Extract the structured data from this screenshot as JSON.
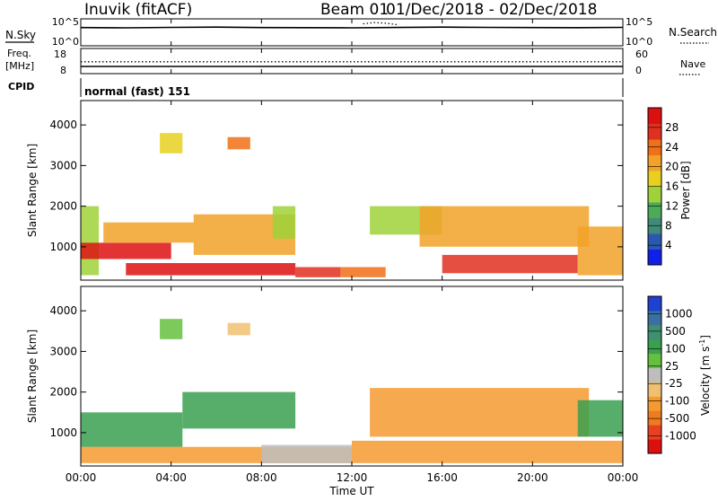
{
  "header": {
    "station": "Inuvik (fitACF)",
    "beam": "Beam 01",
    "date_range": "01/Dec/2018 - 02/Dec/2018"
  },
  "panels": {
    "nsky": {
      "label": "N.Sky",
      "ticks": [
        "10^5",
        "10^0"
      ]
    },
    "nsearch": {
      "label": "N.Search",
      "ticks": [
        "10^5",
        "10^0"
      ]
    },
    "freq": {
      "label": "Freq.",
      "unit": "[MHz]",
      "ticks": [
        "18",
        "8"
      ]
    },
    "nave": {
      "label": "Nave",
      "ticks": [
        "60",
        "0"
      ]
    },
    "cpid": {
      "label": "CPID",
      "mode": "normal (fast) 151"
    }
  },
  "axes": {
    "x_label": "Time UT",
    "x_ticks": [
      "00:00",
      "04:00",
      "08:00",
      "12:00",
      "16:00",
      "20:00",
      "00:00"
    ],
    "y_label": "Slant Range [km]",
    "y_ticks": [
      "1000",
      "2000",
      "3000",
      "4000"
    ]
  },
  "colorbars": {
    "power": {
      "label": "Power [dB]",
      "ticks": [
        "4",
        "8",
        "12",
        "16",
        "20",
        "24",
        "28"
      ],
      "colors": [
        "#1020e8",
        "#2a58b0",
        "#3f8a78",
        "#4caa58",
        "#9fd23a",
        "#e8d020",
        "#f2a228",
        "#f07018",
        "#e03020",
        "#dd1010"
      ]
    },
    "velocity": {
      "label": "Velocity [m s",
      "label_sup": "-1",
      "label_end": "]",
      "ticks": [
        "1000",
        "500",
        "100",
        "25",
        "-25",
        "-100",
        "-500",
        "-1000"
      ],
      "colors": [
        "#2040d0",
        "#3a70a0",
        "#3f8f70",
        "#3aa050",
        "#66c040",
        "#bebebe",
        "#f0c070",
        "#f49a30",
        "#f07a20",
        "#e84020",
        "#dd1010"
      ]
    }
  },
  "chart_data": [
    {
      "type": "line",
      "title": "N.Sky / N.Search",
      "x_range_hours": [
        0,
        24
      ],
      "yscale": "log",
      "ylim": [
        1,
        100000
      ],
      "series": [
        {
          "name": "N.Sky",
          "style": "solid",
          "x": [
            0,
            2,
            4,
            6,
            8,
            10,
            12,
            14,
            16,
            18,
            20,
            22,
            24
          ],
          "values": [
            4000,
            3500,
            4500,
            5000,
            4000,
            3800,
            3500,
            4200,
            5000,
            4500,
            4000,
            3800,
            4500
          ]
        },
        {
          "name": "N.Search",
          "style": "dotted",
          "x": [
            12.5,
            13,
            13.5,
            14
          ],
          "values": [
            30000,
            60000,
            40000,
            20000
          ]
        }
      ]
    },
    {
      "type": "line",
      "title": "Freq. / Nave",
      "x_range_hours": [
        0,
        24
      ],
      "series": [
        {
          "name": "Freq.",
          "style": "solid",
          "ylim": [
            8,
            18
          ],
          "x": [
            0,
            24
          ],
          "values": [
            10.5,
            10.5
          ]
        },
        {
          "name": "Nave",
          "style": "dotted",
          "ylim": [
            0,
            60
          ],
          "x": [
            0,
            24
          ],
          "values": [
            28,
            28
          ]
        }
      ]
    },
    {
      "type": "heatmap",
      "title": "Power",
      "variable": "Power [dB]",
      "x_range_hours": [
        0,
        24
      ],
      "ylim_km": [
        180,
        4600
      ],
      "colorbar_range": [
        0,
        30
      ],
      "regions": [
        {
          "t_start": 0.0,
          "t_end": 0.8,
          "r_low": 300,
          "r_high": 2000,
          "value": 12
        },
        {
          "t_start": 0.0,
          "t_end": 4.0,
          "r_low": 700,
          "r_high": 1100,
          "value": 28
        },
        {
          "t_start": 2.0,
          "t_end": 9.5,
          "r_low": 300,
          "r_high": 600,
          "value": 27
        },
        {
          "t_start": 1.0,
          "t_end": 5.0,
          "r_low": 1100,
          "r_high": 1600,
          "value": 20
        },
        {
          "t_start": 5.0,
          "t_end": 9.5,
          "r_low": 800,
          "r_high": 1800,
          "value": 18
        },
        {
          "t_start": 8.5,
          "t_end": 9.5,
          "r_low": 1200,
          "r_high": 2000,
          "value": 12
        },
        {
          "t_start": 9.5,
          "t_end": 11.5,
          "r_low": 250,
          "r_high": 500,
          "value": 25
        },
        {
          "t_start": 11.5,
          "t_end": 13.5,
          "r_low": 250,
          "r_high": 500,
          "value": 22
        },
        {
          "t_start": 12.8,
          "t_end": 16.0,
          "r_low": 1300,
          "r_high": 2000,
          "value": 14
        },
        {
          "t_start": 15.0,
          "t_end": 22.5,
          "r_low": 1000,
          "r_high": 2000,
          "value": 20
        },
        {
          "t_start": 16.0,
          "t_end": 22.0,
          "r_low": 350,
          "r_high": 800,
          "value": 26
        },
        {
          "t_start": 22.0,
          "t_end": 24.0,
          "r_low": 300,
          "r_high": 1500,
          "value": 18
        },
        {
          "t_start": 3.5,
          "t_end": 4.5,
          "r_low": 3300,
          "r_high": 3800,
          "value": 15
        },
        {
          "t_start": 6.5,
          "t_end": 7.5,
          "r_low": 3400,
          "r_high": 3700,
          "value": 22
        }
      ]
    },
    {
      "type": "heatmap",
      "title": "Velocity",
      "variable": "Velocity [m s-1]",
      "x_range_hours": [
        0,
        24
      ],
      "ylim_km": [
        180,
        4600
      ],
      "colorbar_range": [
        -1000,
        1000
      ],
      "regions": [
        {
          "t_start": 0.0,
          "t_end": 4.5,
          "r_low": 650,
          "r_high": 1500,
          "value": 200
        },
        {
          "t_start": 4.5,
          "t_end": 9.5,
          "r_low": 1100,
          "r_high": 2000,
          "value": 400
        },
        {
          "t_start": 0.0,
          "t_end": 12.0,
          "r_low": 250,
          "r_high": 650,
          "value": -150
        },
        {
          "t_start": 8.0,
          "t_end": 12.0,
          "r_low": 250,
          "r_high": 700,
          "value": 0
        },
        {
          "t_start": 12.8,
          "t_end": 22.5,
          "r_low": 900,
          "r_high": 2100,
          "value": -200
        },
        {
          "t_start": 12.0,
          "t_end": 24.0,
          "r_low": 250,
          "r_high": 800,
          "value": -150
        },
        {
          "t_start": 22.0,
          "t_end": 24.0,
          "r_low": 900,
          "r_high": 1800,
          "value": 150
        },
        {
          "t_start": 3.5,
          "t_end": 4.5,
          "r_low": 3300,
          "r_high": 3800,
          "value": 50
        },
        {
          "t_start": 6.5,
          "t_end": 7.5,
          "r_low": 3400,
          "r_high": 3700,
          "value": -80
        }
      ]
    }
  ]
}
